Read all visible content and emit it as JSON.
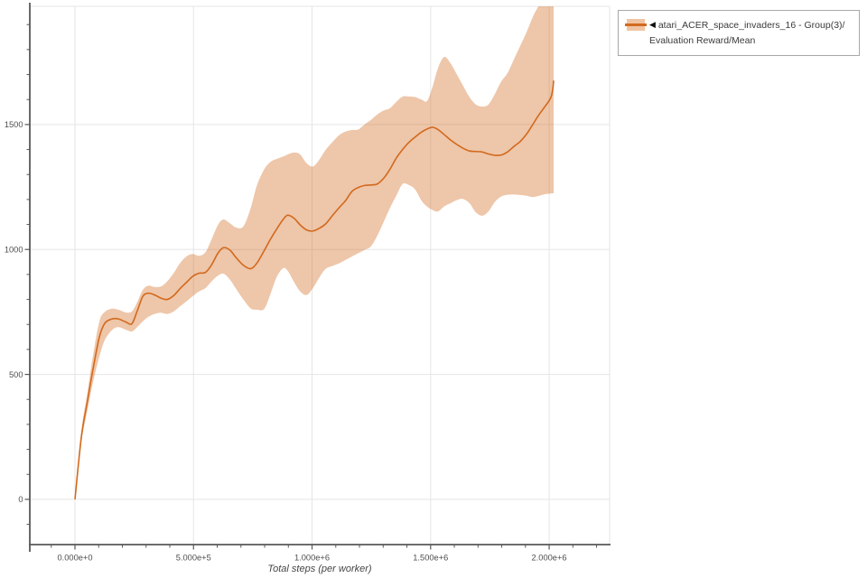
{
  "page": {
    "background": "#ffffff"
  },
  "chart_data": {
    "type": "line",
    "title": "",
    "xlabel": "Total steps (per worker)",
    "ylabel": "",
    "xlim": [
      -190500,
      2255000
    ],
    "ylim": [
      -181,
      1973
    ],
    "grid": "major",
    "x_ticks": [
      {
        "value": 0,
        "label": "0.000e+0"
      },
      {
        "value": 500000,
        "label": "5.000e+5"
      },
      {
        "value": 1000000,
        "label": "1.000e+6"
      },
      {
        "value": 1500000,
        "label": "1.500e+6"
      },
      {
        "value": 2000000,
        "label": "2.000e+6"
      }
    ],
    "y_ticks": [
      {
        "value": 0,
        "label": "0"
      },
      {
        "value": 500,
        "label": "500"
      },
      {
        "value": 1000,
        "label": "1000"
      },
      {
        "value": 1500,
        "label": "1500"
      }
    ],
    "x_minor_step": 100000,
    "y_minor_step": 100,
    "legend": {
      "position": "top-right",
      "marker": "◀"
    },
    "series": [
      {
        "name": "atari_ACER_space_invaders_16 - Group(3)/Evaluation Reward/Mean",
        "color": "#d2691e",
        "band_fill": "#f0c4a3",
        "band_opacity": 0.38,
        "x": [
          0,
          27000,
          53000,
          76000,
          103000,
          126000,
          157000,
          183000,
          214000,
          240000,
          263000,
          286000,
          309000,
          336000,
          363000,
          389000,
          416000,
          443000,
          470000,
          496000,
          523000,
          550000,
          576000,
          603000,
          626000,
          653000,
          679000,
          710000,
          741000,
          767000,
          798000,
          824000,
          851000,
          878000,
          897000,
          924000,
          950000,
          977000,
          1004000,
          1031000,
          1057000,
          1088000,
          1115000,
          1141000,
          1168000,
          1195000,
          1221000,
          1248000,
          1275000,
          1302000,
          1328000,
          1355000,
          1382000,
          1408000,
          1435000,
          1462000,
          1485000,
          1508000,
          1531000,
          1557000,
          1584000,
          1611000,
          1637000,
          1664000,
          1691000,
          1718000,
          1744000,
          1771000,
          1798000,
          1824000,
          1851000,
          1878000,
          1905000,
          1931000,
          1954000,
          1977000,
          1996000,
          2008000,
          2015000,
          2019000
        ],
        "mean": [
          0,
          250,
          395,
          520,
          650,
          705,
          722,
          722,
          710,
          703,
          755,
          812,
          825,
          818,
          805,
          800,
          815,
          843,
          868,
          892,
          905,
          908,
          938,
          985,
          1007,
          998,
          968,
          937,
          923,
          945,
          995,
          1040,
          1082,
          1120,
          1137,
          1125,
          1098,
          1078,
          1074,
          1085,
          1102,
          1138,
          1168,
          1195,
          1232,
          1248,
          1256,
          1258,
          1262,
          1285,
          1320,
          1365,
          1400,
          1428,
          1450,
          1470,
          1482,
          1489,
          1480,
          1460,
          1438,
          1420,
          1405,
          1394,
          1392,
          1390,
          1382,
          1377,
          1378,
          1390,
          1412,
          1432,
          1462,
          1500,
          1535,
          1565,
          1590,
          1610,
          1640,
          1676
        ],
        "lo": [
          0,
          228,
          358,
          468,
          572,
          638,
          678,
          689,
          679,
          672,
          690,
          712,
          730,
          742,
          747,
          742,
          752,
          772,
          792,
          813,
          832,
          845,
          872,
          895,
          903,
          880,
          843,
          800,
          764,
          759,
          762,
          820,
          890,
          925,
          915,
          870,
          832,
          818,
          846,
          888,
          922,
          935,
          945,
          958,
          972,
          985,
          998,
          1012,
          1055,
          1110,
          1165,
          1215,
          1262,
          1258,
          1240,
          1195,
          1172,
          1158,
          1152,
          1172,
          1185,
          1198,
          1202,
          1185,
          1148,
          1135,
          1152,
          1190,
          1212,
          1219,
          1220,
          1218,
          1215,
          1210,
          1214,
          1220,
          1223,
          1224,
          1225,
          1226
        ],
        "hi": [
          0,
          272,
          432,
          575,
          712,
          750,
          763,
          759,
          748,
          752,
          790,
          838,
          855,
          850,
          852,
          872,
          905,
          945,
          972,
          982,
          975,
          988,
          1040,
          1098,
          1120,
          1105,
          1088,
          1092,
          1165,
          1255,
          1320,
          1350,
          1362,
          1372,
          1380,
          1388,
          1380,
          1345,
          1332,
          1360,
          1398,
          1432,
          1458,
          1472,
          1478,
          1480,
          1500,
          1518,
          1540,
          1556,
          1565,
          1590,
          1612,
          1612,
          1610,
          1600,
          1594,
          1650,
          1725,
          1770,
          1745,
          1700,
          1655,
          1610,
          1580,
          1572,
          1580,
          1622,
          1672,
          1705,
          1760,
          1815,
          1870,
          1930,
          1972,
          2005,
          2030,
          2040,
          2045,
          2050
        ]
      }
    ]
  }
}
